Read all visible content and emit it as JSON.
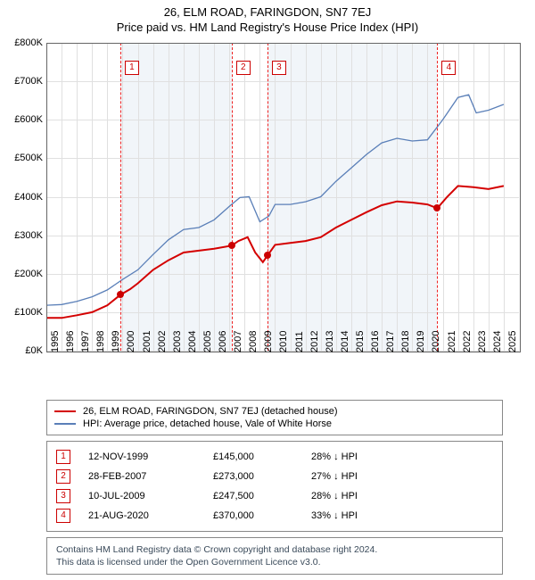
{
  "title_line1": "26, ELM ROAD, FARINGDON, SN7 7EJ",
  "title_line2": "Price paid vs. HM Land Registry's House Price Index (HPI)",
  "chart": {
    "type": "line",
    "y": {
      "min": 0,
      "max": 800,
      "step": 100,
      "prefix": "£",
      "suffix": "K"
    },
    "x": {
      "min": 1995,
      "max": 2026,
      "years": [
        1995,
        1996,
        1997,
        1998,
        1999,
        2000,
        2001,
        2002,
        2003,
        2004,
        2005,
        2006,
        2007,
        2008,
        2009,
        2010,
        2011,
        2012,
        2013,
        2014,
        2015,
        2016,
        2017,
        2018,
        2019,
        2020,
        2021,
        2022,
        2023,
        2024,
        2025
      ]
    },
    "bands": [
      {
        "from": 1999.85,
        "to": 2007.15
      },
      {
        "from": 2009.5,
        "to": 2020.64
      }
    ],
    "grid_color": "#e0e0e0",
    "band_color": "#f1f5f9",
    "series_property": {
      "name": "26, ELM ROAD, FARINGDON, SN7 7EJ (detached house)",
      "color": "#d40000",
      "width": 2,
      "data": [
        [
          1995.0,
          85
        ],
        [
          1996.0,
          85
        ],
        [
          1997.0,
          92
        ],
        [
          1998.0,
          100
        ],
        [
          1999.0,
          118
        ],
        [
          1999.85,
          145
        ],
        [
          2000.5,
          160
        ],
        [
          2001.0,
          175
        ],
        [
          2002.0,
          210
        ],
        [
          2003.0,
          235
        ],
        [
          2004.0,
          255
        ],
        [
          2005.0,
          260
        ],
        [
          2006.0,
          265
        ],
        [
          2007.15,
          273
        ],
        [
          2007.6,
          285
        ],
        [
          2008.2,
          295
        ],
        [
          2008.7,
          255
        ],
        [
          2009.2,
          230
        ],
        [
          2009.5,
          247
        ],
        [
          2010.0,
          275
        ],
        [
          2011.0,
          280
        ],
        [
          2012.0,
          285
        ],
        [
          2013.0,
          295
        ],
        [
          2014.0,
          320
        ],
        [
          2015.0,
          340
        ],
        [
          2016.0,
          360
        ],
        [
          2017.0,
          378
        ],
        [
          2018.0,
          388
        ],
        [
          2019.0,
          385
        ],
        [
          2020.0,
          380
        ],
        [
          2020.64,
          370
        ],
        [
          2021.3,
          400
        ],
        [
          2022.0,
          428
        ],
        [
          2023.0,
          425
        ],
        [
          2024.0,
          420
        ],
        [
          2025.0,
          428
        ]
      ]
    },
    "series_hpi": {
      "name": "HPI: Average price, detached house, Vale of White Horse",
      "color": "#5a7fb8",
      "width": 1.3,
      "data": [
        [
          1995.0,
          118
        ],
        [
          1996.0,
          120
        ],
        [
          1997.0,
          128
        ],
        [
          1998.0,
          140
        ],
        [
          1999.0,
          158
        ],
        [
          2000.0,
          185
        ],
        [
          2001.0,
          210
        ],
        [
          2002.0,
          250
        ],
        [
          2003.0,
          288
        ],
        [
          2004.0,
          315
        ],
        [
          2005.0,
          320
        ],
        [
          2006.0,
          340
        ],
        [
          2007.0,
          375
        ],
        [
          2007.7,
          398
        ],
        [
          2008.3,
          400
        ],
        [
          2009.0,
          335
        ],
        [
          2009.6,
          350
        ],
        [
          2010.0,
          380
        ],
        [
          2011.0,
          380
        ],
        [
          2012.0,
          387
        ],
        [
          2013.0,
          400
        ],
        [
          2014.0,
          440
        ],
        [
          2015.0,
          475
        ],
        [
          2016.0,
          510
        ],
        [
          2017.0,
          540
        ],
        [
          2018.0,
          552
        ],
        [
          2019.0,
          545
        ],
        [
          2020.0,
          548
        ],
        [
          2021.0,
          600
        ],
        [
          2022.0,
          658
        ],
        [
          2022.7,
          665
        ],
        [
          2023.2,
          618
        ],
        [
          2024.0,
          625
        ],
        [
          2025.0,
          640
        ]
      ]
    },
    "sale_markers": [
      {
        "n": 1,
        "year": 1999.85,
        "price_k": 145
      },
      {
        "n": 2,
        "year": 2007.15,
        "price_k": 273
      },
      {
        "n": 3,
        "year": 2009.5,
        "price_k": 247.5
      },
      {
        "n": 4,
        "year": 2020.64,
        "price_k": 370
      }
    ],
    "marker_line_color": "#ee2222"
  },
  "legend": {
    "items": [
      {
        "color": "#d40000",
        "label": "26, ELM ROAD, FARINGDON, SN7 7EJ (detached house)"
      },
      {
        "color": "#5a7fb8",
        "label": "HPI: Average price, detached house, Vale of White Horse"
      }
    ]
  },
  "sales": [
    {
      "n": "1",
      "date": "12-NOV-1999",
      "price": "£145,000",
      "diff": "28% ↓ HPI"
    },
    {
      "n": "2",
      "date": "28-FEB-2007",
      "price": "£273,000",
      "diff": "27% ↓ HPI"
    },
    {
      "n": "3",
      "date": "10-JUL-2009",
      "price": "£247,500",
      "diff": "28% ↓ HPI"
    },
    {
      "n": "4",
      "date": "21-AUG-2020",
      "price": "£370,000",
      "diff": "33% ↓ HPI"
    }
  ],
  "footer": {
    "line1": "Contains HM Land Registry data © Crown copyright and database right 2024.",
    "line2": "This data is licensed under the Open Government Licence v3.0."
  }
}
